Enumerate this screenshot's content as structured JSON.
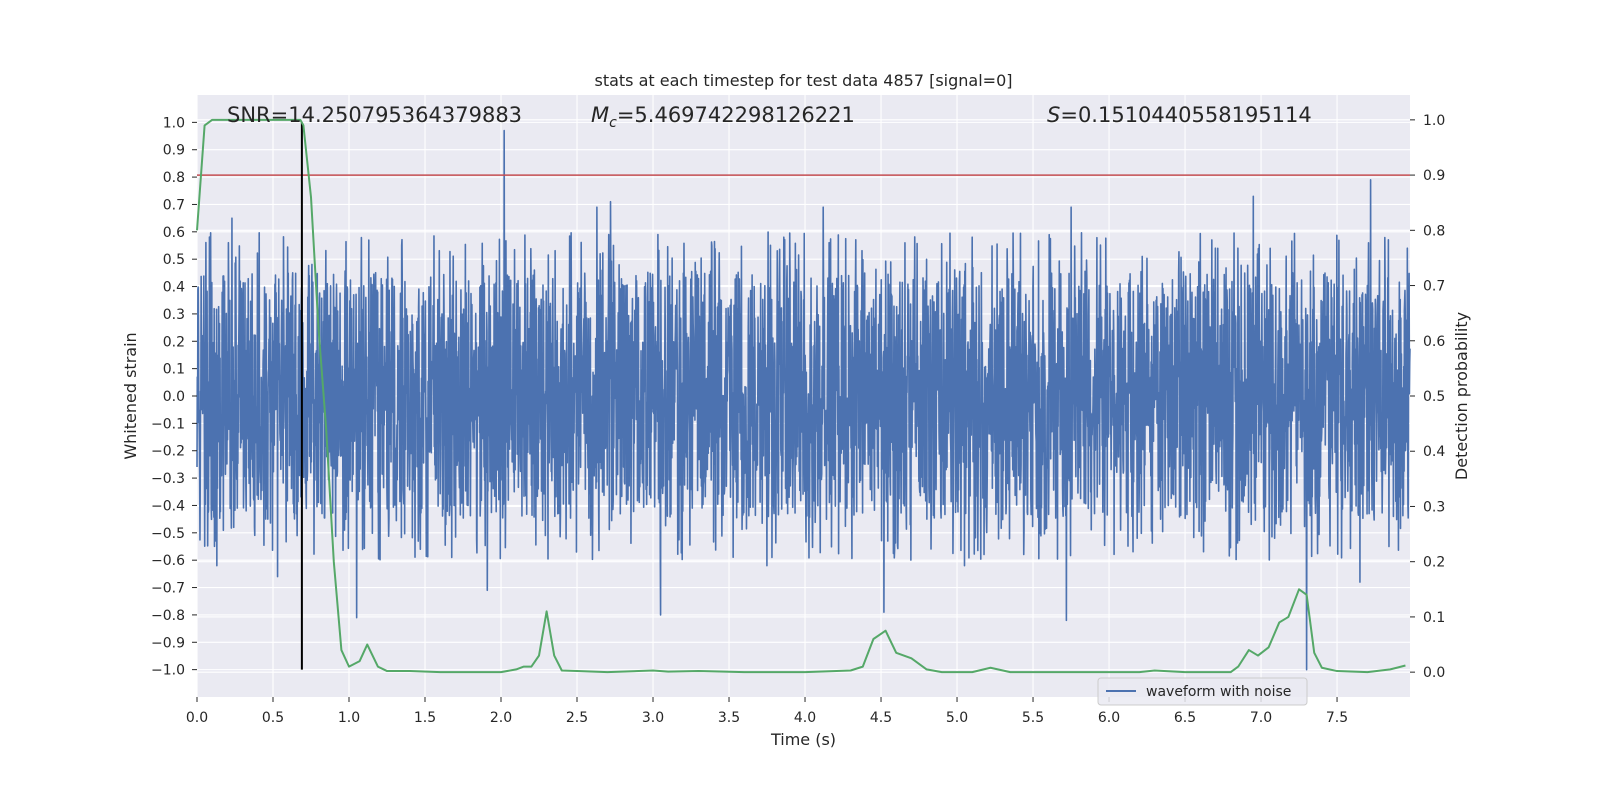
{
  "chart_data": {
    "type": "line",
    "title": "stats at each timestep for test data 4857 [signal=0]",
    "xlabel": "Time (s)",
    "ylabel": "Whitened strain",
    "ylabel_right": "Detection probability",
    "xlim": [
      0.0,
      7.98
    ],
    "ylim": [
      -1.1,
      1.1
    ],
    "ylim_right": [
      -0.045,
      1.045
    ],
    "x_ticks": [
      0.0,
      0.5,
      1.0,
      1.5,
      2.0,
      2.5,
      3.0,
      3.5,
      4.0,
      4.5,
      5.0,
      5.5,
      6.0,
      6.5,
      7.0,
      7.5
    ],
    "x_tick_labels": [
      "0.0",
      "0.5",
      "1.0",
      "1.5",
      "2.0",
      "2.5",
      "3.0",
      "3.5",
      "4.0",
      "4.5",
      "5.0",
      "5.5",
      "6.0",
      "6.5",
      "7.0",
      "7.5"
    ],
    "y_ticks": [
      1.0,
      0.9,
      0.8,
      0.7,
      0.6,
      0.5,
      0.4,
      0.3,
      0.2,
      0.1,
      0.0,
      -0.1,
      -0.2,
      -0.3,
      -0.4,
      -0.5,
      -0.6,
      -0.7,
      -0.8,
      -0.9,
      -1.0
    ],
    "y_tick_labels": [
      "1.0",
      "0.9",
      "0.8",
      "0.7",
      "0.6",
      "0.5",
      "0.4",
      "0.3",
      "0.2",
      "0.1",
      "0.0",
      "−0.1",
      "−0.2",
      "−0.3",
      "−0.4",
      "−0.5",
      "−0.6",
      "−0.7",
      "−0.8",
      "−0.9",
      "−1.0"
    ],
    "y_right_ticks": [
      1.0,
      0.9,
      0.8,
      0.7,
      0.6,
      0.5,
      0.4,
      0.3,
      0.2,
      0.1,
      0.0
    ],
    "y_right_tick_labels": [
      "1.0",
      "0.9",
      "0.8",
      "0.7",
      "0.6",
      "0.5",
      "0.4",
      "0.3",
      "0.2",
      "0.1",
      "0.0"
    ],
    "grid": true,
    "legend": {
      "placement": "lower-right",
      "entries": [
        "waveform with noise"
      ]
    },
    "annotations": {
      "snr": "SNR=14.250795364379883",
      "mc_symbol": "M",
      "mc_sub": "c",
      "mc_value": "=5.469742298126221",
      "s_symbol": "S",
      "s_value": "=0.1510440558195114"
    },
    "threshold_right": 0.9,
    "vertical_line_x": 0.69,
    "waveform": {
      "name": "waveform with noise",
      "sample_count": 4096,
      "amplitude_range": [
        -1.0,
        1.0
      ],
      "dense_band": [
        -0.2,
        0.2
      ],
      "typical_envelope": [
        -0.45,
        0.45
      ],
      "extremes": [
        [
          0.63,
          0.45
        ],
        [
          0.23,
          0.65
        ],
        [
          0.53,
          -0.66
        ],
        [
          1.05,
          -0.81
        ],
        [
          2.02,
          0.97
        ],
        [
          1.91,
          -0.71
        ],
        [
          2.72,
          0.71
        ],
        [
          3.05,
          -0.8
        ],
        [
          4.12,
          0.69
        ],
        [
          4.52,
          -0.79
        ],
        [
          5.72,
          -0.82
        ],
        [
          5.75,
          0.69
        ],
        [
          6.95,
          0.73
        ],
        [
          7.3,
          -1.0
        ],
        [
          7.72,
          0.79
        ],
        [
          7.65,
          -0.68
        ],
        [
          5.05,
          -0.62
        ],
        [
          3.75,
          -0.62
        ],
        [
          0.13,
          -0.62
        ],
        [
          2.63,
          0.69
        ]
      ]
    },
    "probability_series": {
      "x": [
        0.0,
        0.05,
        0.1,
        0.2,
        0.3,
        0.4,
        0.5,
        0.6,
        0.65,
        0.68,
        0.7,
        0.75,
        0.8,
        0.85,
        0.9,
        0.95,
        1.0,
        1.07,
        1.12,
        1.19,
        1.25,
        1.4,
        1.6,
        1.8,
        2.0,
        2.1,
        2.15,
        2.2,
        2.25,
        2.3,
        2.35,
        2.4,
        2.5,
        2.7,
        3.0,
        3.1,
        3.3,
        3.6,
        4.0,
        4.3,
        4.38,
        4.45,
        4.53,
        4.6,
        4.7,
        4.8,
        4.9,
        5.1,
        5.22,
        5.35,
        5.6,
        5.9,
        6.2,
        6.3,
        6.5,
        6.8,
        6.85,
        6.92,
        6.98,
        7.05,
        7.12,
        7.18,
        7.25,
        7.3,
        7.35,
        7.4,
        7.5,
        7.7,
        7.85,
        7.95
      ],
      "y": [
        0.8,
        0.99,
        1.0,
        1.0,
        1.0,
        1.0,
        1.0,
        1.0,
        1.0,
        1.0,
        0.99,
        0.86,
        0.62,
        0.44,
        0.2,
        0.04,
        0.01,
        0.02,
        0.05,
        0.01,
        0.002,
        0.002,
        0.0,
        0.0,
        0.0,
        0.005,
        0.01,
        0.01,
        0.03,
        0.11,
        0.03,
        0.003,
        0.002,
        0.0,
        0.003,
        0.001,
        0.002,
        0.0,
        0.0,
        0.003,
        0.01,
        0.06,
        0.075,
        0.035,
        0.025,
        0.005,
        0.0,
        0.0,
        0.008,
        0.0,
        0.0,
        0.0,
        0.0,
        0.003,
        0.0,
        0.0,
        0.01,
        0.04,
        0.03,
        0.045,
        0.09,
        0.1,
        0.15,
        0.14,
        0.035,
        0.008,
        0.002,
        0.0,
        0.005,
        0.012
      ]
    },
    "colors": {
      "background": "#eaeaf2",
      "grid": "#ffffff",
      "waveform": "#4c72b0",
      "probability": "#55a868",
      "threshold": "#c44e52",
      "vertical_line": "#000000",
      "text": "#262626"
    }
  }
}
